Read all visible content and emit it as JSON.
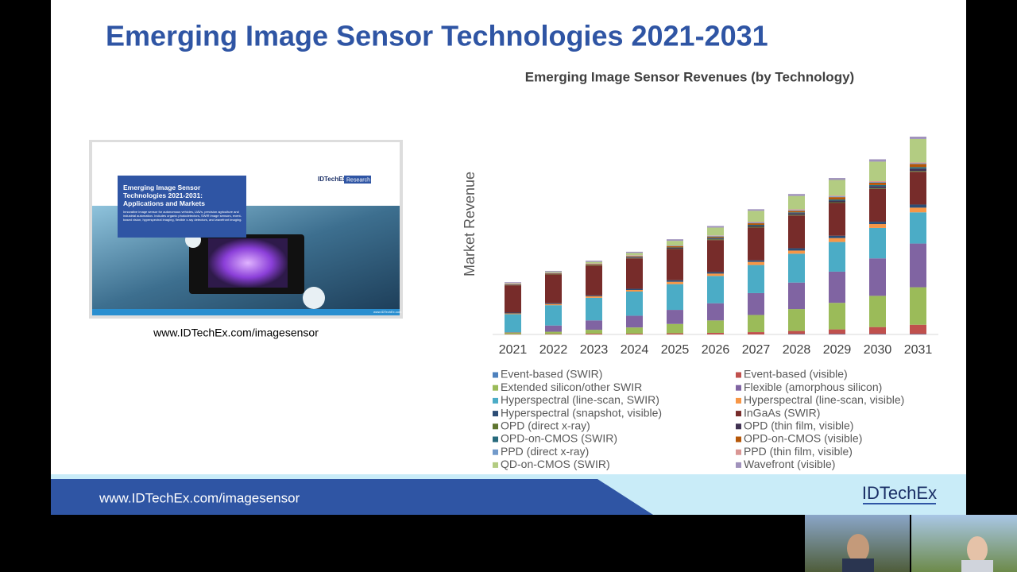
{
  "slide": {
    "title": "Emerging Image Sensor Technologies 2021-2031",
    "book_cover": {
      "brand": "IDTechEx",
      "brand_tag": "Research",
      "title": "Emerging Image Sensor Technologies 2021-2031: Applications and Markets",
      "description": "Innovative image sensor for autonomous vehicles, UAVs, precision agriculture and industrial automation. Includes organic photodetectors, SWIR image sensors, event-based vision, hyperspectral imaging, flexible x-ray detectors, and wavefront imaging.",
      "url": "www.IDTechEx.com"
    },
    "caption": "www.IDTechEx.com/imagesensor",
    "footer": {
      "url": "www.IDTechEx.com/imagesensor",
      "logo": "IDTechEx"
    }
  },
  "chart_data": {
    "type": "bar",
    "stacked": true,
    "title": "Emerging Image Sensor Revenues (by Technology)",
    "y_label": "Market Revenue",
    "categories": [
      "2021",
      "2022",
      "2023",
      "2024",
      "2025",
      "2026",
      "2027",
      "2028",
      "2029",
      "2030",
      "2031"
    ],
    "series": [
      {
        "name": "Event-based (SWIR)",
        "color": "#4e81bd",
        "values": [
          0,
          0,
          0,
          0,
          0,
          0,
          0,
          0.5,
          0.5,
          0.5,
          0.5
        ]
      },
      {
        "name": "Event-based (visible)",
        "color": "#c0504d",
        "values": [
          0.5,
          0.5,
          1,
          1,
          1.5,
          2,
          3,
          4,
          6,
          9,
          12
        ]
      },
      {
        "name": "Extended silicon/other SWIR",
        "color": "#9bbb59",
        "values": [
          2,
          3,
          5,
          8,
          12,
          16,
          22,
          28,
          34,
          40,
          48
        ]
      },
      {
        "name": "Flexible (amorphous silicon)",
        "color": "#8064a2",
        "values": [
          0.5,
          8,
          12,
          15,
          18,
          22,
          28,
          34,
          40,
          48,
          56
        ]
      },
      {
        "name": "Hyperspectral (line-scan, SWIR)",
        "color": "#4bacc6",
        "values": [
          23,
          26,
          29,
          31,
          33,
          35,
          36,
          37,
          38,
          39,
          40
        ]
      },
      {
        "name": "Hyperspectral (line-scan, visible)",
        "color": "#f79646",
        "values": [
          1,
          1.5,
          2,
          2,
          3,
          3,
          4,
          4,
          5,
          5,
          6
        ]
      },
      {
        "name": "Hyperspectral (snapshot, visible)",
        "color": "#2c4d75",
        "values": [
          1,
          1,
          1,
          1.5,
          2,
          2,
          2,
          3,
          3,
          3,
          4
        ]
      },
      {
        "name": "InGaAs (SWIR)",
        "color": "#772c2a",
        "values": [
          35,
          37,
          38,
          39,
          40,
          41,
          42,
          42,
          42,
          42,
          42
        ]
      },
      {
        "name": "OPD (direct x-ray)",
        "color": "#5f7530",
        "values": [
          0.5,
          0.5,
          0.5,
          0.5,
          0.5,
          1,
          1,
          1,
          1,
          1,
          1
        ]
      },
      {
        "name": "OPD (thin film, visible)",
        "color": "#3f3151",
        "values": [
          0.5,
          0.5,
          0.5,
          1,
          1,
          1,
          1.5,
          2,
          2,
          2.5,
          3
        ]
      },
      {
        "name": "OPD-on-CMOS (SWIR)",
        "color": "#276a7c",
        "values": [
          0,
          0,
          0,
          0.5,
          0.5,
          1,
          1,
          1,
          1.5,
          1.5,
          2
        ]
      },
      {
        "name": "OPD-on-CMOS (visible)",
        "color": "#b65708",
        "values": [
          0.5,
          0.5,
          1,
          1,
          1.5,
          1.5,
          2,
          2,
          3,
          3,
          4
        ]
      },
      {
        "name": "PPD (direct x-ray)",
        "color": "#729aca",
        "values": [
          0.5,
          0.5,
          0.5,
          0.5,
          0.5,
          1,
          1,
          1,
          1,
          1,
          1
        ]
      },
      {
        "name": "PPD (thin film, visible)",
        "color": "#d99694",
        "values": [
          0.5,
          0.5,
          0.5,
          0.5,
          0.5,
          0.5,
          1,
          1,
          1,
          1,
          1
        ]
      },
      {
        "name": "QD-on-CMOS (SWIR)",
        "color": "#b3cc82",
        "values": [
          0.5,
          1,
          2,
          3,
          6,
          10,
          14,
          17,
          20,
          25,
          30
        ]
      },
      {
        "name": "Wavefront (visible)",
        "color": "#a092bc",
        "values": [
          1,
          1,
          1.5,
          1.5,
          2,
          2,
          2,
          2.5,
          2.5,
          3,
          3
        ]
      }
    ]
  }
}
